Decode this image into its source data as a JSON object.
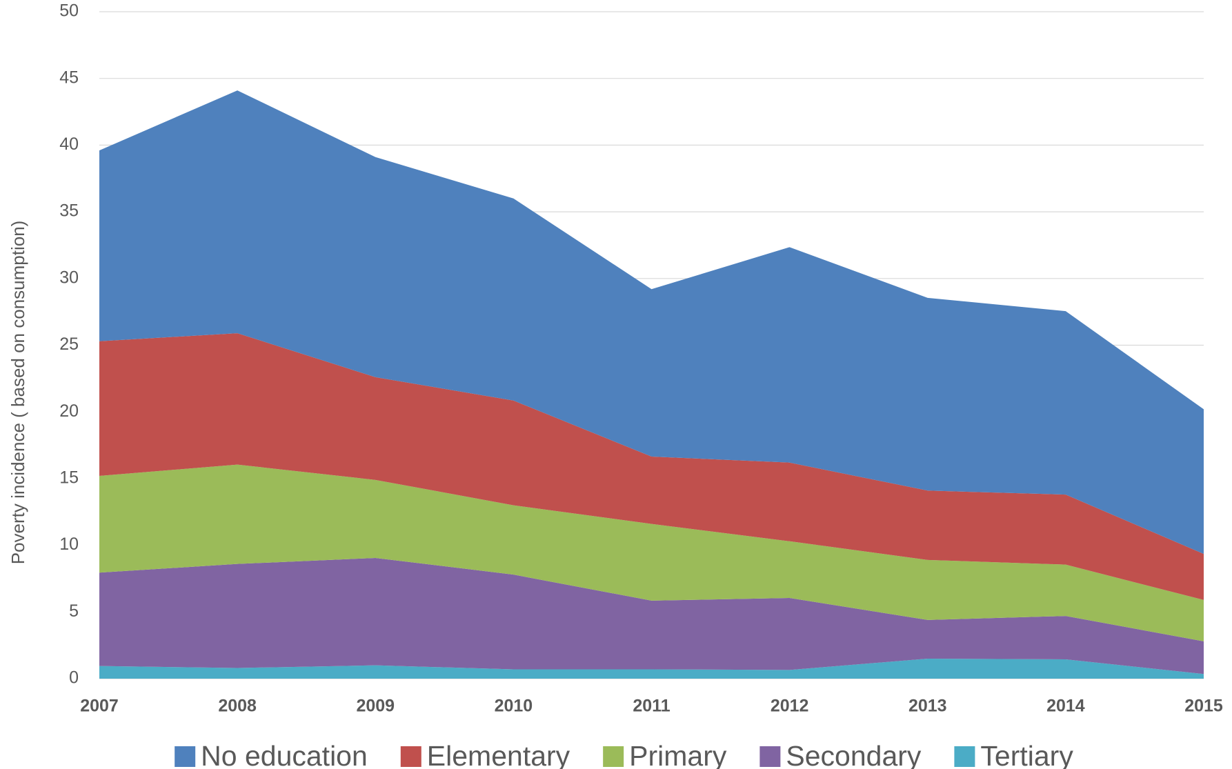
{
  "chart_data": {
    "type": "stacked_area",
    "y_label": "Poverty  incidence ( based on consumption)",
    "categories": [
      "2007",
      "2008",
      "2009",
      "2010",
      "2011",
      "2012",
      "2013",
      "2014",
      "2015"
    ],
    "series": [
      {
        "name": "Tertiary",
        "color": "#4bacc6",
        "values": [
          0.95,
          0.8,
          1.0,
          0.7,
          0.7,
          0.65,
          1.5,
          1.45,
          0.35
        ]
      },
      {
        "name": "Secondary",
        "color": "#8064a2",
        "values": [
          7.0,
          7.8,
          8.05,
          7.1,
          5.15,
          5.4,
          2.9,
          3.25,
          2.45
        ]
      },
      {
        "name": "Primary",
        "color": "#9bbb59",
        "values": [
          7.25,
          7.45,
          5.85,
          5.2,
          5.75,
          4.25,
          4.5,
          3.85,
          3.1
        ]
      },
      {
        "name": "Elementary",
        "color": "#c0504d",
        "values": [
          10.1,
          9.85,
          7.7,
          7.85,
          5.05,
          5.9,
          5.2,
          5.25,
          3.45
        ]
      },
      {
        "name": "No education",
        "color": "#4f81bd",
        "values": [
          14.3,
          18.2,
          16.5,
          15.15,
          12.55,
          16.15,
          14.45,
          13.75,
          10.85
        ]
      }
    ],
    "ylim": [
      0,
      50
    ],
    "yticks": [
      0,
      5,
      10,
      15,
      20,
      25,
      30,
      35,
      40,
      45,
      50
    ],
    "grid": true
  }
}
